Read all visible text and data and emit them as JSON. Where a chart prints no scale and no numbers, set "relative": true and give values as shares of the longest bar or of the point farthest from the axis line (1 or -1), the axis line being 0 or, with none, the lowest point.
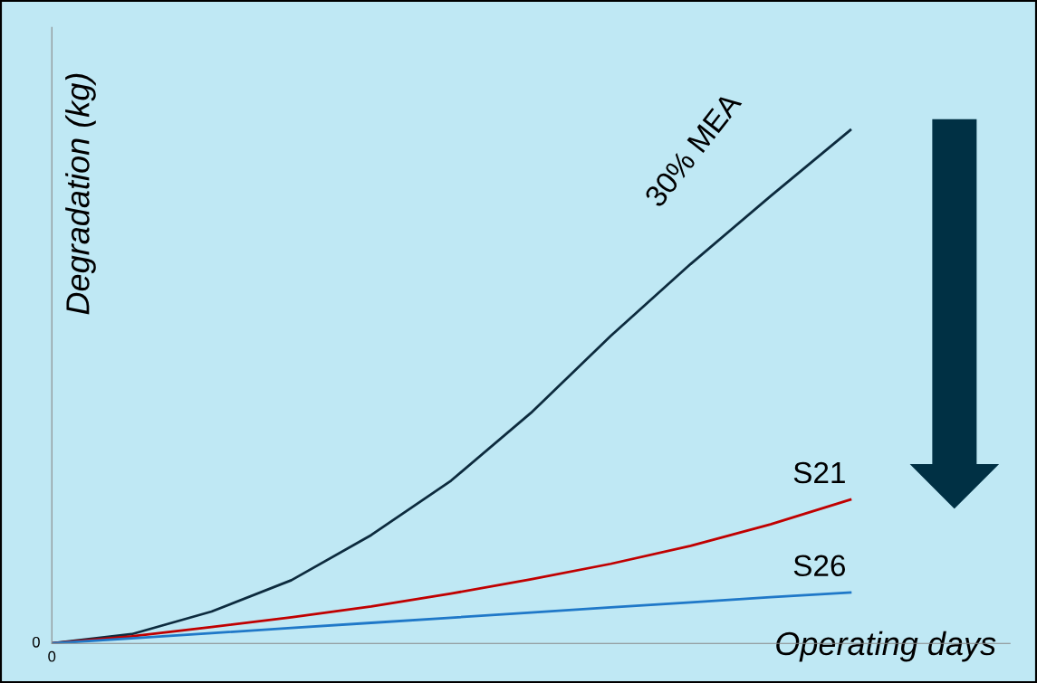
{
  "chart_data": {
    "type": "line",
    "relative": true,
    "xlabel": "Operating days",
    "ylabel": "Degradation (kg)",
    "categories": [
      null,
      null,
      null,
      null,
      null,
      null,
      null,
      null,
      null,
      null,
      null
    ],
    "annotations": [
      "0",
      "0"
    ],
    "series": [
      {
        "name": "30% MEA",
        "color": "#0d2b3e",
        "values": [
          0,
          0.018,
          0.062,
          0.123,
          0.211,
          0.317,
          0.449,
          0.599,
          0.739,
          0.871,
          1
        ]
      },
      {
        "name": "S21",
        "color": "#c00000",
        "values": [
          0,
          0.014,
          0.032,
          0.051,
          0.072,
          0.097,
          0.125,
          0.155,
          0.19,
          0.232,
          0.28
        ]
      },
      {
        "name": "S26",
        "color": "#1f78c8",
        "values": [
          0,
          0.01,
          0.02,
          0.03,
          0.04,
          0.05,
          0.06,
          0.07,
          0.08,
          0.09,
          0.099
        ]
      }
    ],
    "grid": false,
    "legend": false,
    "marker": "none",
    "line_style": "solid"
  }
}
